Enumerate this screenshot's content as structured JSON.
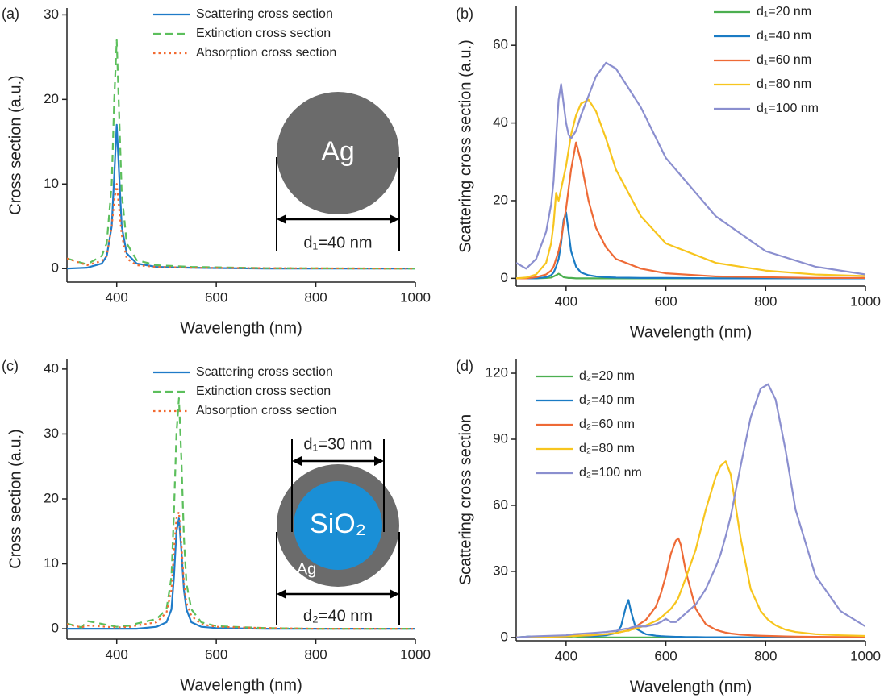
{
  "chart_data": [
    {
      "type": "line",
      "label": "(a)",
      "xlabel": "Wavelength (nm)",
      "ylabel": "Cross section (a.u.)",
      "xlim": [
        300,
        1000
      ],
      "ylim": [
        -1.6,
        30.8
      ],
      "xticks": [
        400,
        600,
        800,
        1000
      ],
      "yticks": [
        0,
        10,
        20,
        30
      ],
      "legend": "upper right",
      "x": [
        300,
        340,
        370,
        380,
        390,
        395,
        400,
        405,
        410,
        420,
        440,
        480,
        550,
        700,
        1000
      ],
      "series": [
        {
          "name": "Scattering cross section",
          "color": "#1f7bc8",
          "dash": "solid",
          "values": [
            0,
            0.1,
            0.6,
            1.5,
            5,
            11,
            17,
            11,
            5,
            1.8,
            0.6,
            0.2,
            0.1,
            0,
            0
          ]
        },
        {
          "name": "Extinction cross section",
          "color": "#5cbf5c",
          "dash": "dashed",
          "values": [
            1.2,
            0.5,
            1.5,
            3,
            10,
            20,
            27,
            18,
            9,
            3,
            1.0,
            0.4,
            0.2,
            0.05,
            0
          ]
        },
        {
          "name": "Absorption cross section",
          "color": "#f26a30",
          "dash": "dotted",
          "values": [
            1.2,
            0.4,
            0.9,
            1.5,
            5,
            8,
            10,
            7,
            4,
            1.2,
            0.4,
            0.2,
            0.1,
            0.05,
            0
          ]
        }
      ],
      "annotations": [
        "Ag",
        "d₁=40 nm"
      ]
    },
    {
      "type": "line",
      "label": "(b)",
      "xlabel": "Wavelength (nm)",
      "ylabel": "Scattering cross section (a.u.)",
      "xlim": [
        300,
        1000
      ],
      "ylim": [
        -2,
        70
      ],
      "xticks": [
        400,
        600,
        800,
        1000
      ],
      "yticks": [
        0,
        20,
        40,
        60
      ],
      "legend": "upper right",
      "x": [
        300,
        320,
        340,
        360,
        370,
        375,
        380,
        385,
        390,
        395,
        400,
        405,
        410,
        420,
        430,
        445,
        460,
        480,
        500,
        550,
        600,
        700,
        800,
        900,
        1000
      ],
      "series": [
        {
          "name": "d₁=20 nm",
          "color": "#4caf50",
          "dash": "solid",
          "values": [
            0,
            0,
            0,
            0.1,
            0.2,
            0.5,
            0.8,
            1.2,
            0.8,
            0.3,
            0.2,
            0.1,
            0.1,
            0,
            0,
            0,
            0,
            0,
            0,
            0,
            0,
            0,
            0,
            0,
            0
          ]
        },
        {
          "name": "d₁=40 nm",
          "color": "#1a7bc4",
          "dash": "solid",
          "values": [
            0,
            0,
            0,
            0.3,
            0.8,
            1.5,
            3,
            5,
            9,
            15,
            17,
            12,
            7,
            3,
            1.5,
            0.8,
            0.5,
            0.3,
            0.2,
            0.1,
            0.1,
            0,
            0,
            0,
            0
          ]
        },
        {
          "name": "d₁=60 nm",
          "color": "#ee6a36",
          "dash": "solid",
          "values": [
            0,
            0,
            0.3,
            1,
            2,
            3,
            5,
            7,
            10,
            14,
            18,
            23,
            28,
            35,
            30,
            20,
            13,
            8,
            5,
            2.5,
            1.3,
            0.5,
            0.3,
            0.1,
            0.1
          ]
        },
        {
          "name": "d₁=80 nm",
          "color": "#f7c51e",
          "dash": "solid",
          "values": [
            0,
            0.2,
            1,
            4,
            9,
            14,
            22,
            20,
            23,
            26,
            29,
            33,
            37,
            42,
            45,
            46,
            43,
            36,
            28,
            16,
            9,
            4,
            2,
            1,
            0.6
          ]
        },
        {
          "name": "d₁=100 nm",
          "color": "#8b8fcf",
          "dash": "solid",
          "values": [
            4,
            2.5,
            5,
            12,
            19,
            25,
            36,
            46,
            50,
            45,
            40,
            37,
            36,
            38,
            42,
            47,
            52,
            55.5,
            54,
            44,
            31,
            16,
            7,
            3,
            1
          ]
        }
      ]
    },
    {
      "type": "line",
      "label": "(c)",
      "xlabel": "Wavelength (nm)",
      "ylabel": "Cross section (a.u.)",
      "xlim": [
        300,
        1000
      ],
      "ylim": [
        -1.6,
        41.6
      ],
      "xticks": [
        400,
        600,
        800,
        1000
      ],
      "yticks": [
        0,
        10,
        20,
        30,
        40
      ],
      "legend": "upper right",
      "x": [
        300,
        330,
        340,
        400,
        430,
        440,
        480,
        500,
        510,
        515,
        520,
        525,
        530,
        535,
        540,
        550,
        570,
        600,
        700,
        800,
        1000
      ],
      "series": [
        {
          "name": "Scattering cross section",
          "color": "#1f7bc8",
          "dash": "solid",
          "values": [
            0,
            0,
            0,
            0,
            0,
            0,
            0.3,
            1,
            3,
            8,
            15,
            17,
            12,
            6,
            3,
            1,
            0.3,
            0.1,
            0,
            0,
            0
          ]
        },
        {
          "name": "Extinction cross section",
          "color": "#5cbf5c",
          "dash": "dashed",
          "values": [
            0.8,
            0.2,
            1.2,
            0.3,
            0.5,
            0.8,
            1.5,
            3,
            8,
            18,
            30,
            35.5,
            26,
            14,
            7,
            3,
            1,
            0.4,
            0.1,
            0,
            0
          ]
        },
        {
          "name": "Absorption cross section",
          "color": "#f26a30",
          "dash": "dotted",
          "values": [
            0.7,
            0.2,
            0.5,
            0.2,
            0.3,
            0.5,
            1.0,
            2.5,
            6,
            12,
            17,
            18,
            13,
            7,
            4,
            2,
            0.7,
            0.3,
            0.1,
            0,
            0
          ]
        }
      ],
      "annotations": [
        "d₁=30 nm",
        "SiO₂",
        "Ag",
        "d₂=40 nm"
      ]
    },
    {
      "type": "line",
      "label": "(d)",
      "xlabel": "Wavelength (nm)",
      "ylabel": "Scattering cross section",
      "xlim": [
        300,
        1000
      ],
      "ylim": [
        -1.5,
        126.6
      ],
      "xticks": [
        400,
        600,
        800,
        1000
      ],
      "yticks": [
        0,
        30,
        60,
        90,
        120
      ],
      "legend": "upper left",
      "x": [
        300,
        330,
        400,
        415,
        450,
        480,
        500,
        510,
        520,
        525,
        530,
        540,
        560,
        580,
        590,
        600,
        610,
        620,
        625,
        630,
        640,
        660,
        680,
        700,
        710,
        720,
        730,
        750,
        770,
        790,
        805,
        820,
        840,
        860,
        900,
        950,
        1000
      ],
      "series": [
        {
          "name": "d₂=20 nm",
          "color": "#4caf50",
          "dash": "solid",
          "values": [
            0,
            0.5,
            0,
            0.5,
            0,
            0,
            0,
            0,
            0,
            0,
            0,
            0,
            0,
            0,
            0,
            0,
            0,
            0,
            0,
            0,
            0,
            0,
            0,
            0,
            0,
            0,
            0,
            0,
            0,
            0,
            0,
            0,
            0,
            0,
            0,
            0,
            0
          ]
        },
        {
          "name": "d₂=40 nm",
          "color": "#1a7bc4",
          "dash": "solid",
          "values": [
            0,
            0.5,
            0.2,
            1,
            0.5,
            1,
            2,
            5,
            14,
            17,
            12,
            4,
            1.5,
            0.8,
            0.6,
            0.5,
            0.4,
            0.3,
            0.3,
            0.3,
            0.2,
            0.2,
            0.1,
            0.1,
            0.1,
            0.1,
            0.1,
            0.1,
            0,
            0,
            0,
            0,
            0,
            0,
            0,
            0,
            0
          ]
        },
        {
          "name": "d₂=60 nm",
          "color": "#ee6a36",
          "dash": "solid",
          "values": [
            0,
            0.3,
            0.5,
            0.8,
            1,
            1.5,
            2,
            2.5,
            3,
            3.5,
            4,
            5,
            8,
            14,
            20,
            28,
            38,
            44,
            45,
            42,
            30,
            13,
            6,
            3.5,
            2.8,
            2.2,
            1.8,
            1.3,
            1,
            0.8,
            0.7,
            0.6,
            0.5,
            0.4,
            0.3,
            0.2,
            0.2
          ]
        },
        {
          "name": "d₂=80 nm",
          "color": "#f7c51e",
          "dash": "solid",
          "values": [
            0,
            0.2,
            0.5,
            0.7,
            1,
            1.5,
            2,
            2.5,
            3,
            3,
            3.5,
            4,
            5.5,
            7.5,
            9,
            11,
            13,
            16,
            18,
            21,
            27,
            40,
            58,
            73,
            78,
            80,
            74,
            45,
            22,
            12,
            8,
            5.5,
            3.5,
            2.5,
            1.5,
            1,
            0.7
          ]
        },
        {
          "name": "d₂=100 nm",
          "color": "#8b8fcf",
          "dash": "solid",
          "values": [
            0,
            0.5,
            1,
            1.5,
            2,
            2.5,
            3,
            3.5,
            4,
            4,
            4.5,
            5,
            5,
            6,
            7,
            8.5,
            7,
            7,
            8,
            9,
            11,
            15,
            22,
            32,
            38,
            46,
            55,
            78,
            100,
            113,
            115,
            108,
            85,
            58,
            28,
            12,
            5
          ]
        }
      ]
    }
  ]
}
